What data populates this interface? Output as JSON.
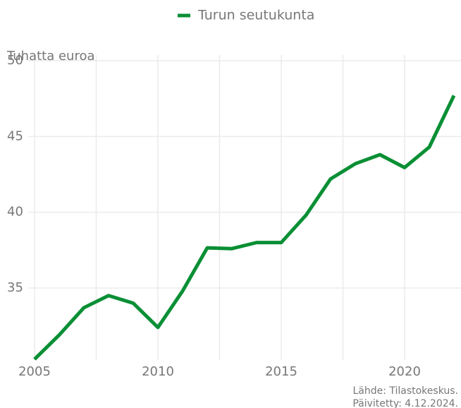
{
  "chart_data": {
    "type": "line",
    "y_axis_label": "Tuhatta euroa",
    "x": [
      2005,
      2006,
      2007,
      2008,
      2009,
      2010,
      2011,
      2012,
      2013,
      2014,
      2015,
      2016,
      2017,
      2018,
      2019,
      2020,
      2021,
      2022
    ],
    "series": [
      {
        "name": "Turun seutukunta",
        "color": "#0a8f35",
        "values": [
          30.3,
          31.9,
          33.7,
          34.5,
          34.0,
          32.4,
          34.8,
          37.65,
          37.6,
          38.0,
          38.0,
          39.8,
          42.2,
          43.2,
          43.8,
          42.95,
          44.3,
          47.7
        ]
      }
    ],
    "xlim": [
      2005,
      2022
    ],
    "xticks": [
      2005,
      2010,
      2015,
      2020
    ],
    "ylim": [
      30.25,
      50
    ],
    "yticks": [
      35,
      40,
      45,
      50
    ],
    "grid": true,
    "legend_position": "top",
    "source": [
      "Lähde: Tilastokeskus.",
      "Päivitetty: 4.12.2024."
    ]
  }
}
